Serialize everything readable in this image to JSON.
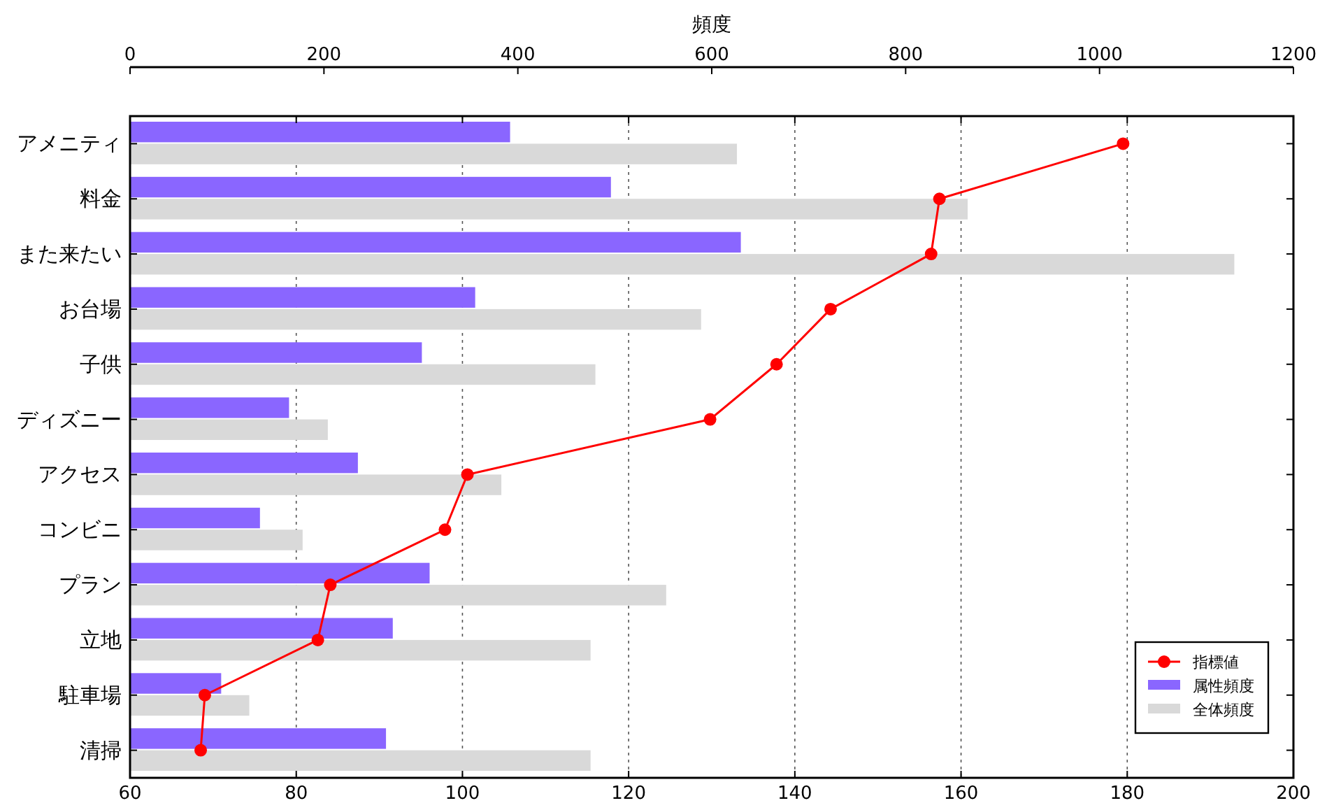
{
  "chart_data": {
    "type": "bar",
    "orientation": "horizontal",
    "x2label": "頻度",
    "categories": [
      "アメニティ",
      "料金",
      "また来たい",
      "お台場",
      "子供",
      "ディズニー",
      "アクセス",
      "コンビニ",
      "プラン",
      "立地",
      "駐車場",
      "清掃"
    ],
    "series": [
      {
        "name": "指標値",
        "type": "line",
        "color": "#ff0000",
        "marker": "circle",
        "values": [
          179.5,
          157.4,
          156.4,
          144.3,
          137.8,
          129.8,
          100.6,
          97.9,
          84.1,
          82.6,
          69.0,
          68.5
        ]
      },
      {
        "name": "属性頻度",
        "axis": "x2",
        "color": "#8a66ff",
        "values": [
          392,
          496,
          630,
          356,
          301,
          164,
          235,
          134,
          309,
          271,
          94,
          264
        ]
      },
      {
        "name": "全体頻度",
        "axis": "x2",
        "color": "#d9d9d9",
        "values": [
          626,
          864,
          1139,
          589,
          480,
          204,
          383,
          178,
          553,
          475,
          123,
          475
        ]
      }
    ],
    "xlim": [
      60,
      200
    ],
    "xticks": [
      60,
      80,
      100,
      120,
      140,
      160,
      180,
      200
    ],
    "x2lim": [
      0,
      1200
    ],
    "x2ticks": [
      0,
      200,
      400,
      600,
      800,
      1000,
      1200
    ],
    "grid": "x",
    "legend": "bottom right"
  }
}
